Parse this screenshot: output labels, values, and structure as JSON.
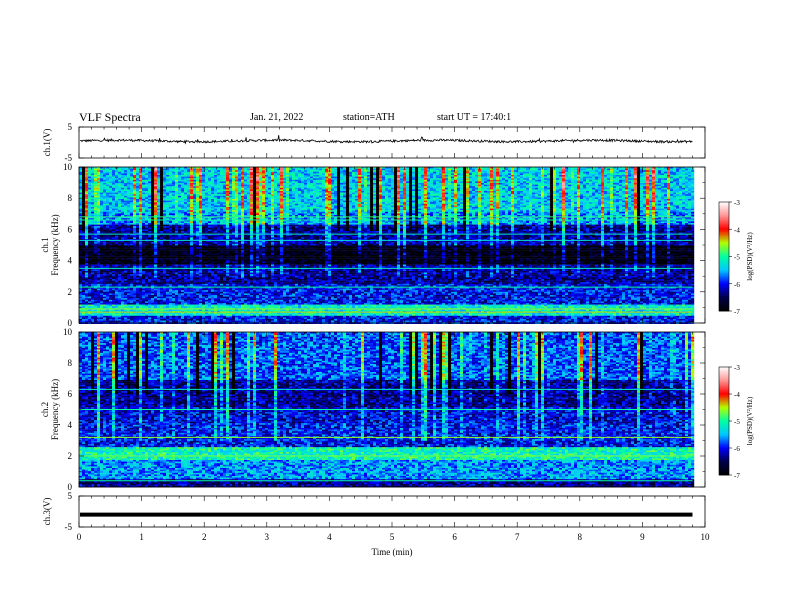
{
  "header": {
    "title": "VLF Spectra",
    "date": "Jan. 21, 2022",
    "station": "station=ATH",
    "start_ut": "start UT =   17:40:1"
  },
  "chart_data": [
    {
      "type": "line",
      "panel": "ch1-waveform",
      "ylabel": "ch.1(V)",
      "ylim": [
        -5,
        5
      ],
      "yticks": [
        "5",
        "-5"
      ],
      "xlim": [
        0,
        10
      ],
      "x_end": 9.8,
      "series": [
        {
          "mean": 0.5,
          "amplitude": 0.6,
          "spike_amplitude": 2.0,
          "color": "#000000"
        }
      ]
    },
    {
      "type": "heatmap",
      "panel": "ch1-spectrogram",
      "ylabel": "ch.1\nFrequency (kHz)",
      "ylim": [
        0,
        10
      ],
      "yticks": [
        "0",
        "2",
        "4",
        "6",
        "8",
        "10"
      ],
      "xlim": [
        0,
        10
      ],
      "x_end": 9.8,
      "colorbar": {
        "label": "log(PSD)(V²/Hz)",
        "range": [
          -7,
          -3
        ],
        "ticks": [
          "-3",
          "-4",
          "-5",
          "-6",
          "-7"
        ]
      },
      "bands_khz": [
        {
          "from": 0.0,
          "to": 0.5,
          "level": -6.0
        },
        {
          "from": 0.5,
          "to": 1.2,
          "level": -5.2
        },
        {
          "from": 1.2,
          "to": 2.6,
          "level": -6.0
        },
        {
          "from": 2.6,
          "to": 3.8,
          "level": -6.3
        },
        {
          "from": 3.8,
          "to": 5.0,
          "level": -6.9
        },
        {
          "from": 5.0,
          "to": 6.4,
          "level": -6.3
        },
        {
          "from": 6.4,
          "to": 7.2,
          "level": -5.6
        },
        {
          "from": 7.2,
          "to": 10.0,
          "level": -5.4
        }
      ],
      "lines_khz": [
        {
          "f": 0.7,
          "level": -4.4
        },
        {
          "f": 0.9,
          "level": -4.6
        },
        {
          "f": 2.3,
          "level": -5.0
        },
        {
          "f": 3.5,
          "level": -5.2
        },
        {
          "f": 5.3,
          "level": -5.3
        },
        {
          "f": 5.7,
          "level": -5.2
        },
        {
          "f": 6.6,
          "level": -5.0
        },
        {
          "f": 6.8,
          "level": -4.9
        }
      ]
    },
    {
      "type": "heatmap",
      "panel": "ch2-spectrogram",
      "ylabel": "ch.2\nFrequency (kHz)",
      "ylim": [
        0,
        10
      ],
      "yticks": [
        "0",
        "2",
        "4",
        "6",
        "8",
        "10"
      ],
      "xlim": [
        0,
        10
      ],
      "x_end": 9.8,
      "colorbar": {
        "label": "log(PSD)(V²/Hz)",
        "range": [
          -7,
          -3
        ],
        "ticks": [
          "-3",
          "-4",
          "-5",
          "-6",
          "-7"
        ]
      },
      "bands_khz": [
        {
          "from": 0.0,
          "to": 0.6,
          "level": -6.3
        },
        {
          "from": 0.6,
          "to": 1.8,
          "level": -5.6
        },
        {
          "from": 1.8,
          "to": 2.6,
          "level": -5.1
        },
        {
          "from": 2.6,
          "to": 4.2,
          "level": -6.0
        },
        {
          "from": 4.2,
          "to": 5.2,
          "level": -6.1
        },
        {
          "from": 5.2,
          "to": 7.0,
          "level": -6.3
        },
        {
          "from": 7.0,
          "to": 10.0,
          "level": -5.8
        }
      ],
      "lines_khz": [
        {
          "f": 2.0,
          "level": -4.7
        },
        {
          "f": 3.2,
          "level": -4.6
        },
        {
          "f": 5.0,
          "level": -5.0
        },
        {
          "f": 6.3,
          "level": -5.2
        },
        {
          "f": 0.4,
          "level": -5.0
        }
      ]
    },
    {
      "type": "line",
      "panel": "ch3-waveform",
      "ylabel": "ch.3(V)",
      "ylim": [
        -5,
        5
      ],
      "yticks": [
        "5",
        "-5"
      ],
      "xlim": [
        0,
        10
      ],
      "x_end": 9.8,
      "xlabel": "Time (min)",
      "xticks": [
        "0",
        "1",
        "2",
        "3",
        "4",
        "5",
        "6",
        "7",
        "8",
        "9",
        "10"
      ],
      "series": [
        {
          "mean": -1.0,
          "amplitude": 0.0,
          "color": "#000000"
        }
      ]
    }
  ],
  "colors": {
    "colormap": [
      "#000000",
      "#00004a",
      "#0000ff",
      "#00c8ff",
      "#00ffa0",
      "#b4ff00",
      "#ff0000",
      "#ff9696",
      "#ffffff"
    ]
  }
}
